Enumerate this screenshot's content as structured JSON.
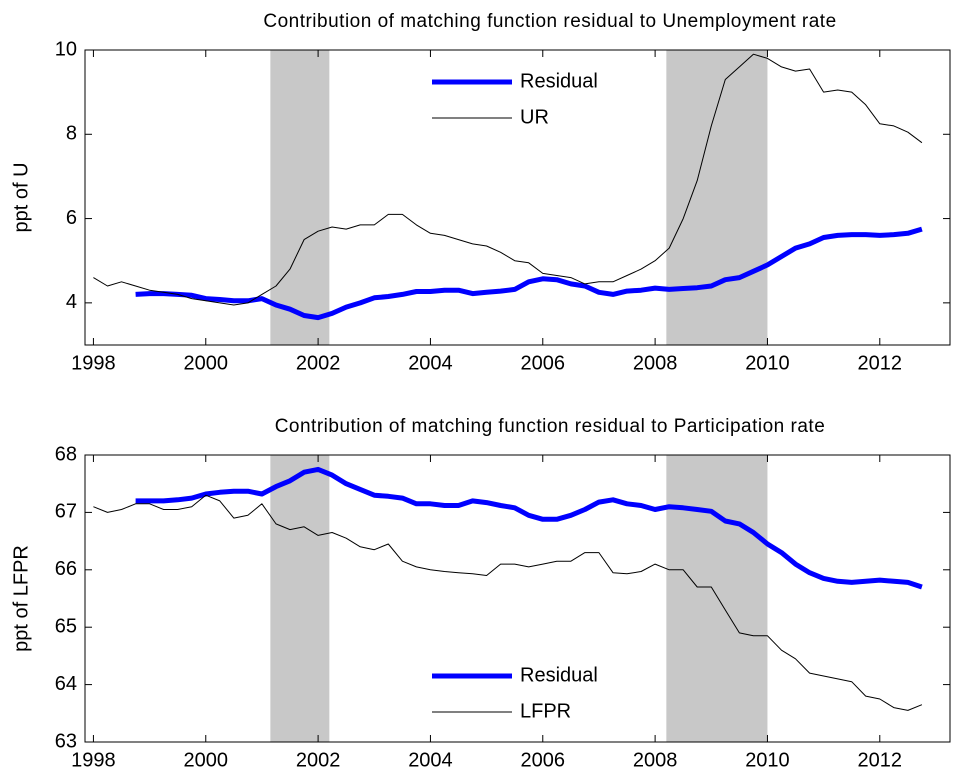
{
  "chart_data": [
    {
      "type": "line",
      "title": "Contribution of matching function residual to Unemployment rate",
      "ylabel": "ppt of U",
      "x": [
        1998,
        1998.25,
        1998.5,
        1998.75,
        1999,
        1999.25,
        1999.5,
        1999.75,
        2000,
        2000.25,
        2000.5,
        2000.75,
        2001,
        2001.25,
        2001.5,
        2001.75,
        2002,
        2002.25,
        2002.5,
        2002.75,
        2003,
        2003.25,
        2003.5,
        2003.75,
        2004,
        2004.25,
        2004.5,
        2004.75,
        2005,
        2005.25,
        2005.5,
        2005.75,
        2006,
        2006.25,
        2006.5,
        2006.75,
        2007,
        2007.25,
        2007.5,
        2007.75,
        2008,
        2008.25,
        2008.5,
        2008.75,
        2009,
        2009.25,
        2009.5,
        2009.75,
        2010,
        2010.25,
        2010.5,
        2010.75,
        2011,
        2011.25,
        2011.5,
        2011.75,
        2012,
        2012.25,
        2012.5,
        2012.75
      ],
      "series": [
        {
          "name": "Residual",
          "color": "#0000ff",
          "width": 5,
          "values": [
            null,
            null,
            null,
            4.2,
            4.22,
            4.22,
            4.2,
            4.18,
            4.1,
            4.08,
            4.05,
            4.05,
            4.1,
            3.95,
            3.85,
            3.7,
            3.65,
            3.75,
            3.9,
            4.0,
            4.12,
            4.15,
            4.2,
            4.27,
            4.27,
            4.3,
            4.3,
            4.22,
            4.25,
            4.28,
            4.32,
            4.5,
            4.57,
            4.55,
            4.45,
            4.4,
            4.25,
            4.2,
            4.28,
            4.3,
            4.35,
            4.32,
            4.34,
            4.36,
            4.4,
            4.55,
            4.6,
            4.75,
            4.9,
            5.1,
            5.3,
            5.4,
            5.55,
            5.6,
            5.62,
            5.62,
            5.6,
            5.62,
            5.65,
            5.75
          ]
        },
        {
          "name": "UR",
          "color": "#000000",
          "width": 1,
          "values": [
            4.6,
            4.4,
            4.5,
            4.4,
            4.3,
            4.25,
            4.2,
            4.1,
            4.05,
            4.0,
            3.95,
            4.0,
            4.2,
            4.4,
            4.8,
            5.5,
            5.7,
            5.8,
            5.75,
            5.85,
            5.85,
            6.1,
            6.1,
            5.85,
            5.65,
            5.6,
            5.5,
            5.4,
            5.35,
            5.2,
            5.0,
            4.95,
            4.7,
            4.65,
            4.6,
            4.45,
            4.5,
            4.5,
            4.65,
            4.8,
            5.0,
            5.3,
            6.0,
            6.9,
            8.2,
            9.3,
            9.6,
            9.9,
            9.8,
            9.6,
            9.5,
            9.55,
            9.0,
            9.05,
            9.0,
            8.7,
            8.25,
            8.2,
            8.05,
            7.8
          ]
        }
      ],
      "xlim": [
        1997.85,
        2013.25
      ],
      "xticks": [
        1998,
        2000,
        2002,
        2004,
        2006,
        2008,
        2010,
        2012
      ],
      "ylim": [
        3,
        10
      ],
      "yticks": [
        4,
        6,
        8,
        10
      ],
      "legend": "upper center",
      "shaded": [
        [
          2001.15,
          2002.2
        ],
        [
          2008.2,
          2010
        ]
      ]
    },
    {
      "type": "line",
      "title": "Contribution of matching function residual to Participation rate",
      "ylabel": "ppt of LFPR",
      "x": [
        1998,
        1998.25,
        1998.5,
        1998.75,
        1999,
        1999.25,
        1999.5,
        1999.75,
        2000,
        2000.25,
        2000.5,
        2000.75,
        2001,
        2001.25,
        2001.5,
        2001.75,
        2002,
        2002.25,
        2002.5,
        2002.75,
        2003,
        2003.25,
        2003.5,
        2003.75,
        2004,
        2004.25,
        2004.5,
        2004.75,
        2005,
        2005.25,
        2005.5,
        2005.75,
        2006,
        2006.25,
        2006.5,
        2006.75,
        2007,
        2007.25,
        2007.5,
        2007.75,
        2008,
        2008.25,
        2008.5,
        2008.75,
        2009,
        2009.25,
        2009.5,
        2009.75,
        2010,
        2010.25,
        2010.5,
        2010.75,
        2011,
        2011.25,
        2011.5,
        2011.75,
        2012,
        2012.25,
        2012.5,
        2012.75
      ],
      "series": [
        {
          "name": "Residual",
          "color": "#0000ff",
          "width": 5,
          "values": [
            null,
            null,
            null,
            67.2,
            67.2,
            67.2,
            67.22,
            67.25,
            67.32,
            67.35,
            67.37,
            67.37,
            67.32,
            67.45,
            67.55,
            67.7,
            67.75,
            67.65,
            67.5,
            67.4,
            67.3,
            67.28,
            67.25,
            67.15,
            67.15,
            67.12,
            67.12,
            67.2,
            67.17,
            67.12,
            67.08,
            66.95,
            66.88,
            66.88,
            66.95,
            67.05,
            67.18,
            67.22,
            67.15,
            67.12,
            67.05,
            67.1,
            67.08,
            67.05,
            67.02,
            66.85,
            66.8,
            66.65,
            66.45,
            66.3,
            66.1,
            65.95,
            65.85,
            65.8,
            65.78,
            65.8,
            65.82,
            65.8,
            65.78,
            65.7
          ]
        },
        {
          "name": "LFPR",
          "color": "#000000",
          "width": 1,
          "values": [
            67.1,
            67.0,
            67.05,
            67.15,
            67.15,
            67.05,
            67.05,
            67.1,
            67.3,
            67.2,
            66.9,
            66.95,
            67.15,
            66.8,
            66.7,
            66.75,
            66.6,
            66.65,
            66.55,
            66.4,
            66.35,
            66.45,
            66.15,
            66.05,
            66.0,
            65.97,
            65.95,
            65.93,
            65.9,
            66.1,
            66.1,
            66.05,
            66.1,
            66.15,
            66.15,
            66.3,
            66.3,
            65.95,
            65.93,
            65.97,
            66.1,
            66.0,
            66.0,
            65.7,
            65.7,
            65.3,
            64.9,
            64.85,
            64.85,
            64.6,
            64.45,
            64.2,
            64.15,
            64.1,
            64.05,
            63.8,
            63.75,
            63.6,
            63.55,
            63.65
          ]
        }
      ],
      "xlim": [
        1997.85,
        2013.25
      ],
      "xticks": [
        1998,
        2000,
        2002,
        2004,
        2006,
        2008,
        2010,
        2012
      ],
      "ylim": [
        63,
        68
      ],
      "yticks": [
        63,
        64,
        65,
        66,
        67,
        68
      ],
      "legend": "lower center",
      "shaded": [
        [
          2001.15,
          2002.2
        ],
        [
          2008.2,
          2010
        ]
      ]
    }
  ]
}
